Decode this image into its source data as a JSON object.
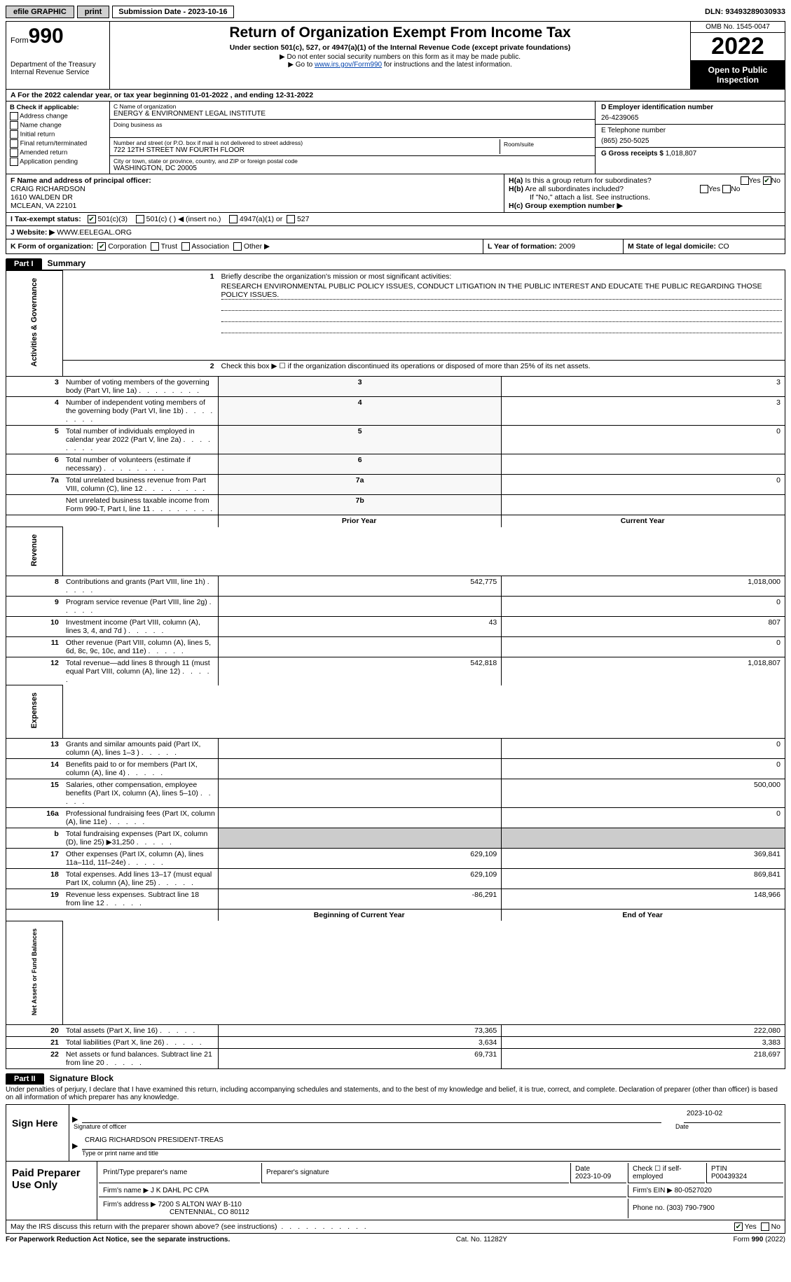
{
  "topbar": {
    "efile": "efile GRAPHIC",
    "print": "print",
    "sub_label": "Submission Date - ",
    "sub_date": "2023-10-16",
    "dln_label": "DLN: ",
    "dln": "93493289030933"
  },
  "header": {
    "form_word": "Form",
    "form_no": "990",
    "dept": "Department of the Treasury",
    "irs": "Internal Revenue Service",
    "title": "Return of Organization Exempt From Income Tax",
    "sub1": "Under section 501(c), 527, or 4947(a)(1) of the Internal Revenue Code (except private foundations)",
    "sub2": "▶ Do not enter social security numbers on this form as it may be made public.",
    "sub3_a": "▶ Go to ",
    "sub3_link": "www.irs.gov/Form990",
    "sub3_b": " for instructions and the latest information.",
    "omb": "OMB No. 1545-0047",
    "year": "2022",
    "otp": "Open to Public Inspection"
  },
  "row_a": {
    "text_a": "A For the 2022 calendar year, or tax year beginning ",
    "begin": "01-01-2022",
    "text_b": " , and ending ",
    "end": "12-31-2022"
  },
  "entity": {
    "b_label": "B Check if applicable:",
    "b_opts": [
      "Address change",
      "Name change",
      "Initial return",
      "Final return/terminated",
      "Amended return",
      "Application pending"
    ],
    "c_name_lbl": "C Name of organization",
    "c_name": "ENERGY & ENVIRONMENT LEGAL INSTITUTE",
    "dba_lbl": "Doing business as",
    "addr_lbl": "Number and street (or P.O. box if mail is not delivered to street address)",
    "rs_lbl": "Room/suite",
    "addr": "722 12TH STREET NW FOURTH FLOOR",
    "city_lbl": "City or town, state or province, country, and ZIP or foreign postal code",
    "city": "WASHINGTON, DC  20005",
    "d_ein_lbl": "D Employer identification number",
    "d_ein": "26-4239065",
    "e_tel_lbl": "E Telephone number",
    "e_tel": "(865) 250-5025",
    "g_lbl": "G Gross receipts $ ",
    "g_val": "1,018,807"
  },
  "fh": {
    "f_lbl": "F Name and address of principal officer:",
    "f_name": "CRAIG RICHARDSON",
    "f_addr1": "1610 WALDEN DR",
    "f_addr2": "MCLEAN, VA  22101",
    "ha_lbl": "H(a)  Is this a group return for subordinates?",
    "hb_lbl": "H(b)  Are all subordinates included?",
    "hb_note": "If \"No,\" attach a list. See instructions.",
    "hc_lbl": "H(c)  Group exemption number ▶",
    "yes": "Yes",
    "no": "No"
  },
  "itax": {
    "lbl": "I   Tax-exempt status:",
    "o1": "501(c)(3)",
    "o2": "501(c) (   ) ◀ (insert no.)",
    "o3": "4947(a)(1) or",
    "o4": "527"
  },
  "jweb": {
    "lbl": "J  Website: ▶  ",
    "val": "WWW.EELEGAL.ORG"
  },
  "klm": {
    "k_lbl": "K Form of organization:",
    "k_opts": [
      "Corporation",
      "Trust",
      "Association",
      "Other ▶"
    ],
    "l_lbl": "L Year of formation: ",
    "l_val": "2009",
    "m_lbl": "M State of legal domicile: ",
    "m_val": "CO"
  },
  "part1": {
    "hdr": "Part I",
    "title": "Summary"
  },
  "summary": {
    "side_a": "Activities & Governance",
    "side_r": "Revenue",
    "side_e": "Expenses",
    "side_n": "Net Assets or Fund Balances",
    "l1_lbl": "Briefly describe the organization's mission or most significant activities:",
    "l1_txt": "RESEARCH ENVIRONMENTAL PUBLIC POLICY ISSUES, CONDUCT LITIGATION IN THE PUBLIC INTEREST AND EDUCATE THE PUBLIC REGARDING THOSE POLICY ISSUES.",
    "l2": "Check this box ▶ ☐ if the organization discontinued its operations or disposed of more than 25% of its net assets.",
    "rows_a": [
      {
        "n": "3",
        "t": "Number of voting members of the governing body (Part VI, line 1a)",
        "box": "3",
        "v": "3"
      },
      {
        "n": "4",
        "t": "Number of independent voting members of the governing body (Part VI, line 1b)",
        "box": "4",
        "v": "3"
      },
      {
        "n": "5",
        "t": "Total number of individuals employed in calendar year 2022 (Part V, line 2a)",
        "box": "5",
        "v": "0"
      },
      {
        "n": "6",
        "t": "Total number of volunteers (estimate if necessary)",
        "box": "6",
        "v": ""
      },
      {
        "n": "7a",
        "t": "Total unrelated business revenue from Part VIII, column (C), line 12",
        "box": "7a",
        "v": "0"
      },
      {
        "n": "",
        "t": "Net unrelated business taxable income from Form 990-T, Part I, line 11",
        "box": "7b",
        "v": ""
      }
    ],
    "col_prior": "Prior Year",
    "col_curr": "Current Year",
    "rows_r": [
      {
        "n": "8",
        "t": "Contributions and grants (Part VIII, line 1h)",
        "p": "542,775",
        "c": "1,018,000"
      },
      {
        "n": "9",
        "t": "Program service revenue (Part VIII, line 2g)",
        "p": "",
        "c": "0"
      },
      {
        "n": "10",
        "t": "Investment income (Part VIII, column (A), lines 3, 4, and 7d )",
        "p": "43",
        "c": "807"
      },
      {
        "n": "11",
        "t": "Other revenue (Part VIII, column (A), lines 5, 6d, 8c, 9c, 10c, and 11e)",
        "p": "",
        "c": "0"
      },
      {
        "n": "12",
        "t": "Total revenue—add lines 8 through 11 (must equal Part VIII, column (A), line 12)",
        "p": "542,818",
        "c": "1,018,807"
      }
    ],
    "rows_e": [
      {
        "n": "13",
        "t": "Grants and similar amounts paid (Part IX, column (A), lines 1–3 )",
        "p": "",
        "c": "0"
      },
      {
        "n": "14",
        "t": "Benefits paid to or for members (Part IX, column (A), line 4)",
        "p": "",
        "c": "0"
      },
      {
        "n": "15",
        "t": "Salaries, other compensation, employee benefits (Part IX, column (A), lines 5–10)",
        "p": "",
        "c": "500,000"
      },
      {
        "n": "16a",
        "t": "Professional fundraising fees (Part IX, column (A), line 11e)",
        "p": "",
        "c": "0"
      },
      {
        "n": "b",
        "t": "Total fundraising expenses (Part IX, column (D), line 25) ▶31,250",
        "p": "shade",
        "c": "shade"
      },
      {
        "n": "17",
        "t": "Other expenses (Part IX, column (A), lines 11a–11d, 11f–24e)",
        "p": "629,109",
        "c": "369,841"
      },
      {
        "n": "18",
        "t": "Total expenses. Add lines 13–17 (must equal Part IX, column (A), line 25)",
        "p": "629,109",
        "c": "869,841"
      },
      {
        "n": "19",
        "t": "Revenue less expenses. Subtract line 18 from line 12",
        "p": "-86,291",
        "c": "148,966"
      }
    ],
    "col_beg": "Beginning of Current Year",
    "col_end": "End of Year",
    "rows_n": [
      {
        "n": "20",
        "t": "Total assets (Part X, line 16)",
        "p": "73,365",
        "c": "222,080"
      },
      {
        "n": "21",
        "t": "Total liabilities (Part X, line 26)",
        "p": "3,634",
        "c": "3,383"
      },
      {
        "n": "22",
        "t": "Net assets or fund balances. Subtract line 21 from line 20",
        "p": "69,731",
        "c": "218,697"
      }
    ]
  },
  "part2": {
    "hdr": "Part II",
    "title": "Signature Block"
  },
  "sig": {
    "perjury": "Under penalties of perjury, I declare that I have examined this return, including accompanying schedules and statements, and to the best of my knowledge and belief, it is true, correct, and complete. Declaration of preparer (other than officer) is based on all information of which preparer has any knowledge.",
    "sign_here": "Sign Here",
    "sig_of": "Signature of officer",
    "date_lbl": "Date",
    "date_val": "2023-10-02",
    "name_title": "CRAIG RICHARDSON  PRESIDENT-TREAS",
    "type_name": "Type or print name and title"
  },
  "paid": {
    "left": "Paid Preparer Use Only",
    "h1": "Print/Type preparer's name",
    "h2": "Preparer's signature",
    "h3_a": "Date",
    "h3_b": "2023-10-09",
    "h4": "Check ☐ if self-employed",
    "h5_a": "PTIN",
    "h5_b": "P00439324",
    "firm_name_lbl": "Firm's name    ▶ ",
    "firm_name": "J K DAHL PC CPA",
    "firm_ein_lbl": "Firm's EIN ▶ ",
    "firm_ein": "80-0527020",
    "firm_addr_lbl": "Firm's address ▶ ",
    "firm_addr1": "7200 S ALTON WAY B-110",
    "firm_addr2": "CENTENNIAL, CO  80112",
    "phone_lbl": "Phone no. ",
    "phone": "(303) 790-7900"
  },
  "discuss": {
    "q": "May the IRS discuss this return with the preparer shown above? (see instructions)",
    "yes": "Yes",
    "no": "No"
  },
  "footer": {
    "l": "For Paperwork Reduction Act Notice, see the separate instructions.",
    "m": "Cat. No. 11282Y",
    "r": "Form 990 (2022)"
  }
}
